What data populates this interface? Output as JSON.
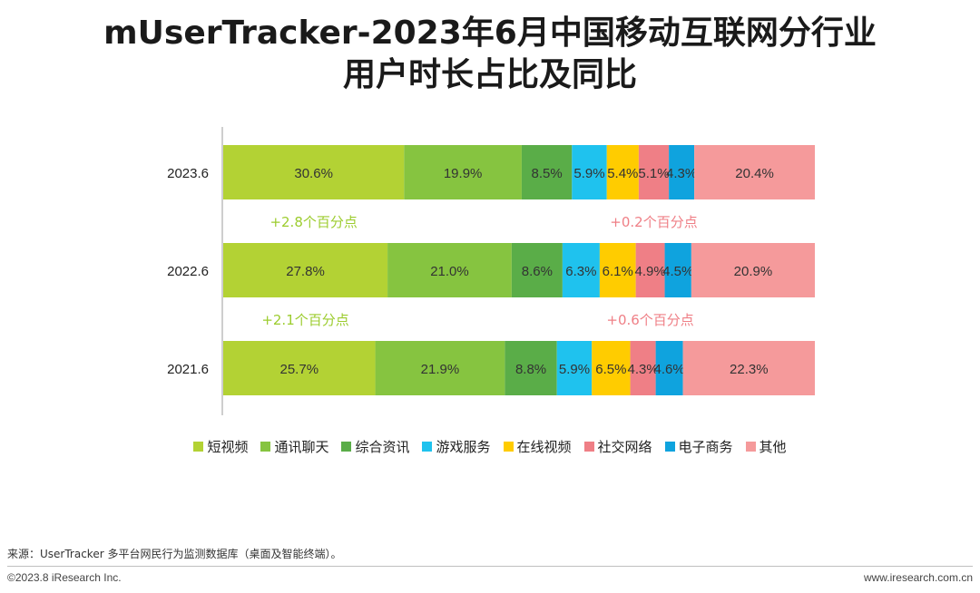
{
  "title": {
    "line1": "mUserTracker-2023年6月中国移动互联网分行业",
    "line2": "用户时长占比及同比"
  },
  "chart_data": {
    "type": "bar",
    "orientation": "horizontal-stacked-percent",
    "categories": [
      "2023.6",
      "2022.6",
      "2021.6"
    ],
    "series": [
      {
        "name": "短视频",
        "color": "#b3d234",
        "values": [
          30.6,
          27.8,
          25.7
        ]
      },
      {
        "name": "通讯聊天",
        "color": "#86c440",
        "values": [
          19.9,
          21.0,
          21.9
        ]
      },
      {
        "name": "综合资讯",
        "color": "#5aad48",
        "values": [
          8.5,
          8.6,
          8.8
        ]
      },
      {
        "name": "游戏服务",
        "color": "#1fc2ee",
        "values": [
          5.9,
          6.3,
          5.9
        ]
      },
      {
        "name": "在线视频",
        "color": "#ffcc00",
        "values": [
          5.4,
          6.1,
          6.5
        ]
      },
      {
        "name": "社交网络",
        "color": "#ef7f86",
        "values": [
          5.1,
          4.9,
          4.3
        ]
      },
      {
        "name": "电子商务",
        "color": "#0fa3de",
        "values": [
          4.3,
          4.5,
          4.6
        ]
      },
      {
        "name": "其他",
        "color": "#f59a9b",
        "values": [
          20.4,
          20.9,
          22.3
        ]
      }
    ],
    "value_labels": [
      [
        "30.6%",
        "19.9%",
        "8.5%",
        "5.9%",
        "5.4%",
        "5.1%",
        "4.3%",
        "20.4%"
      ],
      [
        "27.8%",
        "21.0%",
        "8.6%",
        "6.3%",
        "6.1%",
        "4.9%",
        "4.5%",
        "20.9%"
      ],
      [
        "25.7%",
        "21.9%",
        "8.8%",
        "5.9%",
        "6.5%",
        "4.3%",
        "4.6%",
        "22.3%"
      ]
    ],
    "annotations": [
      {
        "text": "+2.8个百分点",
        "between": [
          "2023.6",
          "2022.6"
        ],
        "series": "短视频",
        "color": "#9ccc2e"
      },
      {
        "text": "+0.2个百分点",
        "between": [
          "2023.6",
          "2022.6"
        ],
        "series": "社交网络",
        "color": "#ef7f86"
      },
      {
        "text": "+2.1个百分点",
        "between": [
          "2022.6",
          "2021.6"
        ],
        "series": "短视频",
        "color": "#9ccc2e"
      },
      {
        "text": "+0.6个百分点",
        "between": [
          "2022.6",
          "2021.6"
        ],
        "series": "社交网络",
        "color": "#ef7f86"
      }
    ],
    "legend_position": "bottom",
    "grid": false
  },
  "footer": {
    "source": "来源：UserTracker 多平台网民行为监测数据库（桌面及智能终端）。",
    "copyright": "©2023.8 iResearch Inc.",
    "website": "www.iresearch.com.cn"
  }
}
